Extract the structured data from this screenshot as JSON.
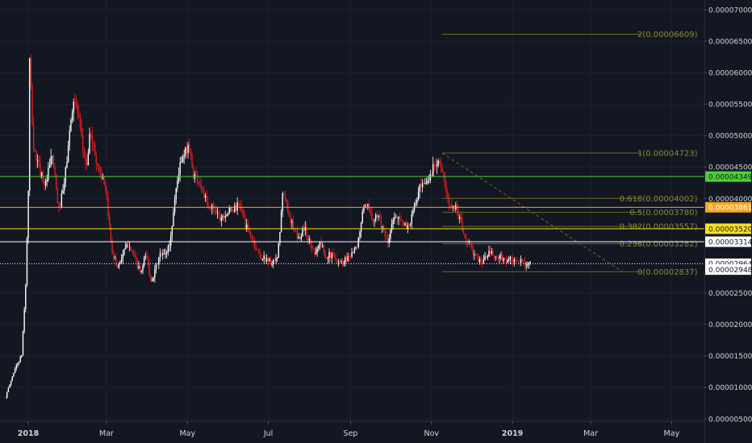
{
  "chart_data": {
    "type": "candlestick",
    "ylim": [
      4.8e-06,
      7.1e-06
    ],
    "y_ticks": [
      {
        "value": 7e-05,
        "label": "0.00007000"
      },
      {
        "value": 6.5e-05,
        "label": "0.00006500"
      },
      {
        "value": 6e-05,
        "label": "0.00006000"
      },
      {
        "value": 5.5e-05,
        "label": "0.00005500"
      },
      {
        "value": 5e-05,
        "label": "0.00005000"
      },
      {
        "value": 4.5e-05,
        "label": "0.00004500"
      },
      {
        "value": 4e-05,
        "label": "0.00004000"
      },
      {
        "value": 2.5e-05,
        "label": "0.00002500"
      },
      {
        "value": 2e-05,
        "label": "0.00002000"
      },
      {
        "value": 1.5e-05,
        "label": "0.00001500"
      },
      {
        "value": 1e-05,
        "label": "0.00001000"
      },
      {
        "value": 5e-06,
        "label": "0.00000500"
      }
    ],
    "x_ticks": [
      {
        "date": "2018-01-01",
        "label": "2018",
        "bold": true
      },
      {
        "date": "2018-03-01",
        "label": "Mar",
        "bold": false
      },
      {
        "date": "2018-05-01",
        "label": "May",
        "bold": false
      },
      {
        "date": "2018-07-01",
        "label": "Jul",
        "bold": false
      },
      {
        "date": "2018-09-01",
        "label": "Sep",
        "bold": false
      },
      {
        "date": "2018-11-01",
        "label": "Nov",
        "bold": false
      },
      {
        "date": "2019-01-01",
        "label": "2019",
        "bold": true
      },
      {
        "date": "2019-03-01",
        "label": "Mar",
        "bold": false
      },
      {
        "date": "2019-05-01",
        "label": "May",
        "bold": false
      }
    ],
    "price_path": [
      [
        "2017-12-15",
        8.5e-06
      ],
      [
        "2017-12-22",
        1.3e-05
      ],
      [
        "2017-12-27",
        1.5e-05
      ],
      [
        "2017-12-30",
        2.6e-05
      ],
      [
        "2018-01-01",
        4e-05
      ],
      [
        "2018-01-02",
        6.2e-05
      ],
      [
        "2018-01-05",
        4.8e-05
      ],
      [
        "2018-01-09",
        4.5e-05
      ],
      [
        "2018-01-14",
        4.2e-05
      ],
      [
        "2018-01-19",
        4.7e-05
      ],
      [
        "2018-01-24",
        3.8e-05
      ],
      [
        "2018-01-28",
        4.2e-05
      ],
      [
        "2018-02-01",
        5e-05
      ],
      [
        "2018-02-04",
        5.6e-05
      ],
      [
        "2018-02-07",
        5.4e-05
      ],
      [
        "2018-02-11",
        4.8e-05
      ],
      [
        "2018-02-14",
        4.5e-05
      ],
      [
        "2018-02-17",
        5.1e-05
      ],
      [
        "2018-02-21",
        4.6e-05
      ],
      [
        "2018-02-25",
        4.4e-05
      ],
      [
        "2018-03-01",
        4e-05
      ],
      [
        "2018-03-05",
        3.2e-05
      ],
      [
        "2018-03-09",
        2.9e-05
      ],
      [
        "2018-03-13",
        3.1e-05
      ],
      [
        "2018-03-18",
        3.3e-05
      ],
      [
        "2018-03-22",
        3.05e-05
      ],
      [
        "2018-03-27",
        2.8e-05
      ],
      [
        "2018-03-31",
        3.15e-05
      ],
      [
        "2018-04-03",
        2.7e-05
      ],
      [
        "2018-04-06",
        2.8e-05
      ],
      [
        "2018-04-10",
        3.1e-05
      ],
      [
        "2018-04-14",
        3.1e-05
      ],
      [
        "2018-04-18",
        3.3e-05
      ],
      [
        "2018-04-22",
        4.1e-05
      ],
      [
        "2018-04-25",
        4.5e-05
      ],
      [
        "2018-04-29",
        4.7e-05
      ],
      [
        "2018-05-02",
        4.9e-05
      ],
      [
        "2018-05-05",
        4.4e-05
      ],
      [
        "2018-05-09",
        4.3e-05
      ],
      [
        "2018-05-13",
        4.1e-05
      ],
      [
        "2018-05-17",
        3.8e-05
      ],
      [
        "2018-05-21",
        3.9e-05
      ],
      [
        "2018-05-25",
        3.7e-05
      ],
      [
        "2018-05-29",
        3.75e-05
      ],
      [
        "2018-06-02",
        3.8e-05
      ],
      [
        "2018-06-06",
        3.85e-05
      ],
      [
        "2018-06-10",
        3.9e-05
      ],
      [
        "2018-06-14",
        3.55e-05
      ],
      [
        "2018-06-18",
        3.4e-05
      ],
      [
        "2018-06-22",
        3.2e-05
      ],
      [
        "2018-06-26",
        3.05e-05
      ],
      [
        "2018-06-30",
        3.05e-05
      ],
      [
        "2018-07-04",
        2.95e-05
      ],
      [
        "2018-07-08",
        3.05e-05
      ],
      [
        "2018-07-12",
        4.1e-05
      ],
      [
        "2018-07-16",
        3.8e-05
      ],
      [
        "2018-07-20",
        3.5e-05
      ],
      [
        "2018-07-24",
        3.35e-05
      ],
      [
        "2018-07-28",
        3.55e-05
      ],
      [
        "2018-08-01",
        3.3e-05
      ],
      [
        "2018-08-05",
        3.15e-05
      ],
      [
        "2018-08-09",
        3.3e-05
      ],
      [
        "2018-08-13",
        3.1e-05
      ],
      [
        "2018-08-17",
        3.1e-05
      ],
      [
        "2018-08-21",
        3.05e-05
      ],
      [
        "2018-08-25",
        2.98e-05
      ],
      [
        "2018-08-29",
        3.05e-05
      ],
      [
        "2018-09-02",
        3.15e-05
      ],
      [
        "2018-09-06",
        3.2e-05
      ],
      [
        "2018-09-10",
        3.8e-05
      ],
      [
        "2018-09-14",
        3.85e-05
      ],
      [
        "2018-09-18",
        3.7e-05
      ],
      [
        "2018-09-22",
        3.75e-05
      ],
      [
        "2018-09-26",
        3.45e-05
      ],
      [
        "2018-09-29",
        3.28e-05
      ],
      [
        "2018-10-03",
        3.65e-05
      ],
      [
        "2018-10-07",
        3.75e-05
      ],
      [
        "2018-10-11",
        3.55e-05
      ],
      [
        "2018-10-15",
        3.57e-05
      ],
      [
        "2018-10-19",
        3.85e-05
      ],
      [
        "2018-10-23",
        4.15e-05
      ],
      [
        "2018-10-27",
        4.2e-05
      ],
      [
        "2018-10-31",
        4.35e-05
      ],
      [
        "2018-11-03",
        4.55e-05
      ],
      [
        "2018-11-06",
        4.65e-05
      ],
      [
        "2018-11-09",
        4.4e-05
      ],
      [
        "2018-11-12",
        4.1e-05
      ],
      [
        "2018-11-14",
        3.9e-05
      ],
      [
        "2018-11-17",
        3.95e-05
      ],
      [
        "2018-11-20",
        3.8e-05
      ],
      [
        "2018-11-23",
        3.65e-05
      ],
      [
        "2018-11-26",
        3.35e-05
      ],
      [
        "2018-11-29",
        3.3e-05
      ],
      [
        "2018-12-02",
        3.15e-05
      ],
      [
        "2018-12-05",
        3.05e-05
      ],
      [
        "2018-12-08",
        3e-05
      ],
      [
        "2018-12-12",
        3.05e-05
      ],
      [
        "2018-12-15",
        3.15e-05
      ],
      [
        "2018-12-19",
        3.05e-05
      ],
      [
        "2018-12-23",
        3.05e-05
      ],
      [
        "2018-12-27",
        3.02e-05
      ],
      [
        "2018-12-31",
        3.03e-05
      ],
      [
        "2019-01-03",
        2.98e-05
      ],
      [
        "2019-01-07",
        3e-05
      ],
      [
        "2019-01-11",
        2.98e-05
      ],
      [
        "2019-01-15",
        2.96e-05
      ]
    ],
    "fibonacci": {
      "levels": [
        {
          "ratio": "2",
          "price": 6.609e-05,
          "label": "2(0.00006609)"
        },
        {
          "ratio": "1",
          "price": 4.723e-05,
          "label": "1(0.00004723)"
        },
        {
          "ratio": "0.618",
          "price": 4.002e-05,
          "label": "0.618(0.00004002)"
        },
        {
          "ratio": "0.5",
          "price": 3.78e-05,
          "label": "0.5(0.00003780)"
        },
        {
          "ratio": "0.382",
          "price": 3.557e-05,
          "label": "0.382(0.00003557)"
        },
        {
          "ratio": "0.236",
          "price": 3.282e-05,
          "label": "0.236(0.00003282)"
        },
        {
          "ratio": "0",
          "price": 2.837e-05,
          "label": "0(0.00002837)"
        }
      ],
      "start_date": "2018-11-09",
      "end_date": "2019-04-08",
      "trend_from": {
        "date": "2018-11-09",
        "price": 4.723e-05
      },
      "trend_to": {
        "date": "2019-03-25",
        "price": 2.837e-05
      }
    },
    "horizontal_lines": [
      {
        "price": 4.349e-05,
        "color": "#4cd137",
        "label": "0.00004349",
        "badge_text_color": "#131722"
      },
      {
        "price": 3.861e-05,
        "color": "#f5a623",
        "label": "0.00003861",
        "badge_text_color": "#ffffff"
      },
      {
        "price": 3.52e-05,
        "color": "#f7e11c",
        "label": "0.00003520",
        "badge_text_color": "#131722"
      },
      {
        "price": 3.314e-05,
        "color": "#ffffff",
        "label": "0.00003314",
        "badge_text_color": "#131722"
      },
      {
        "price": 2.964e-05,
        "color": "#ffffff",
        "label": "0.00002964",
        "badge_text_color": "#131722",
        "dotted": true
      }
    ],
    "price_tags": [
      {
        "price": 2.948e-05,
        "label": "0.00002948"
      }
    ],
    "colors": {
      "background": "#131722",
      "grid": "#1e2230",
      "up": "#ffffff",
      "down": "#e01e1e",
      "fib": "#6b6a22",
      "axis_text": "#d1d4dc"
    }
  }
}
